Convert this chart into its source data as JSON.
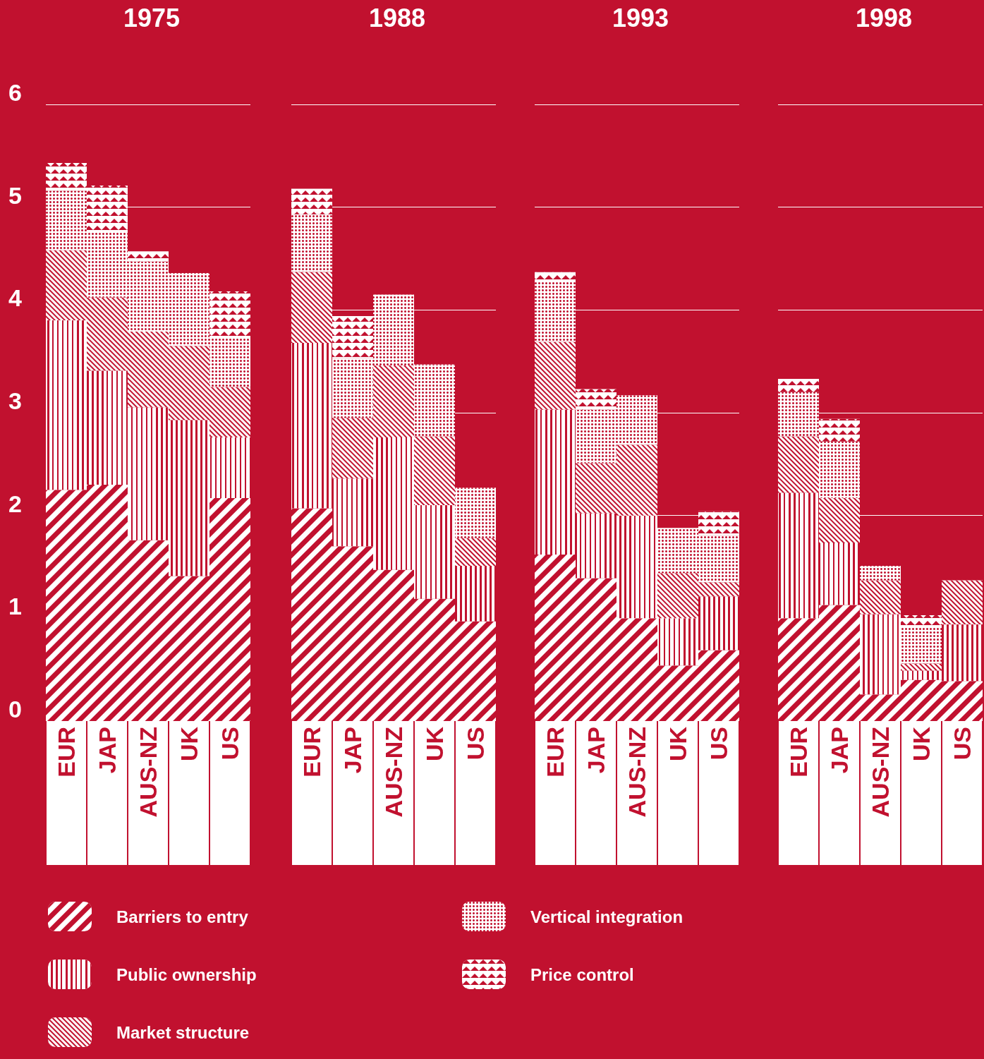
{
  "chart_data": [
    {
      "type": "bar",
      "title": "1975",
      "categories": [
        "EUR",
        "JAP",
        "AUS-NZ",
        "UK",
        "US"
      ],
      "stacked": true,
      "ylim": [
        0,
        6
      ],
      "yticks": [
        0,
        1,
        2,
        3,
        4,
        5,
        6
      ],
      "grid": "y",
      "legend": "bottom",
      "series": [
        {
          "name": "Barriers to entry",
          "color": "#ffffff",
          "values": [
            2.25,
            2.3,
            1.76,
            1.41,
            2.17
          ]
        },
        {
          "name": "Public ownership",
          "color": "#ffffff",
          "values": [
            1.65,
            1.11,
            1.29,
            1.52,
            0.59
          ]
        },
        {
          "name": "Market structure",
          "color": "#ffffff",
          "values": [
            0.68,
            0.71,
            0.74,
            0.72,
            0.49
          ]
        },
        {
          "name": "Vertical integration",
          "color": "#ffffff",
          "values": [
            0.58,
            0.63,
            0.68,
            0.71,
            0.47
          ]
        },
        {
          "name": "Price control",
          "color": "#ffffff",
          "values": [
            0.27,
            0.46,
            0.1,
            0,
            0.46
          ]
        }
      ]
    },
    {
      "type": "bar",
      "title": "1988",
      "categories": [
        "EUR",
        "JAP",
        "AUS-NZ",
        "UK",
        "US"
      ],
      "stacked": true,
      "ylim": [
        0,
        6
      ],
      "yticks": [
        0,
        1,
        2,
        3,
        4,
        5,
        6
      ],
      "grid": "y",
      "tick_labels": "x",
      "series": [
        {
          "color": "#ffffff",
          "values": [
            2.07,
            1.7,
            1.47,
            1.19,
            0.97
          ]
        },
        {
          "color": "#ffffff",
          "values": [
            1.61,
            0.66,
            1.29,
            0.91,
            0.54
          ]
        },
        {
          "color": "#ffffff",
          "values": [
            0.69,
            0.59,
            0.7,
            0.67,
            0.27
          ]
        },
        {
          "color": "#ffffff",
          "values": [
            0.56,
            0.58,
            0.69,
            0.7,
            0.49
          ]
        },
        {
          "color": "#ffffff",
          "values": [
            0.25,
            0.41,
            0,
            0,
            0
          ]
        }
      ]
    },
    {
      "type": "bar",
      "title": "1993",
      "categories": [
        "EUR",
        "JAP",
        "AUS-NZ",
        "UK",
        "US"
      ],
      "stacked": true,
      "ylim": [
        0,
        6
      ],
      "yticks": [
        0,
        1,
        2,
        3,
        4,
        5,
        6
      ],
      "grid": "y",
      "tick_labels": "x",
      "series": [
        {
          "color": "#ffffff",
          "values": [
            1.62,
            1.39,
            1.0,
            0.54,
            0.69
          ]
        },
        {
          "color": "#ffffff",
          "values": [
            1.41,
            0.63,
            1.0,
            0.46,
            0.52
          ]
        },
        {
          "color": "#ffffff",
          "values": [
            0.66,
            0.49,
            0.69,
            0.44,
            0.14
          ]
        },
        {
          "color": "#ffffff",
          "values": [
            0.58,
            0.52,
            0.48,
            0.44,
            0.46
          ]
        },
        {
          "color": "#ffffff",
          "values": [
            0.1,
            0.2,
            0,
            0,
            0.23
          ]
        }
      ]
    },
    {
      "type": "bar",
      "title": "1998",
      "categories": [
        "EUR",
        "JAP",
        "AUS-NZ",
        "UK",
        "US"
      ],
      "stacked": true,
      "ylim": [
        0,
        6
      ],
      "yticks": [
        0,
        1,
        2,
        3,
        4,
        5,
        6
      ],
      "grid": "y",
      "tick_labels": "x",
      "series": [
        {
          "color": "#ffffff",
          "values": [
            1.0,
            1.13,
            0.26,
            0.4,
            0.39
          ]
        },
        {
          "color": "#ffffff",
          "values": [
            1.22,
            0.6,
            0.78,
            0.09,
            0.55
          ]
        },
        {
          "color": "#ffffff",
          "values": [
            0.55,
            0.44,
            0.33,
            0.07,
            0.43
          ]
        },
        {
          "color": "#ffffff",
          "values": [
            0.43,
            0.55,
            0.14,
            0.36,
            0
          ]
        },
        {
          "color": "#ffffff",
          "values": [
            0.13,
            0.22,
            0,
            0.11,
            0
          ]
        }
      ]
    }
  ]
}
